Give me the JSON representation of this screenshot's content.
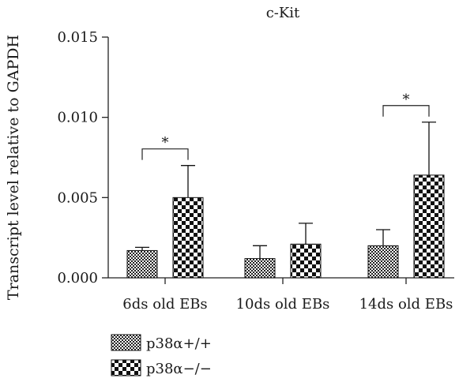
{
  "chart_data": {
    "type": "bar",
    "title": "c-Kit",
    "ylabel": "Transcript level relative to GAPDH",
    "xlabel": "",
    "ylim": [
      0,
      0.015
    ],
    "yticks": [
      "0.000",
      "0.005",
      "0.010",
      "0.015"
    ],
    "categories": [
      "6ds old EBs",
      "10ds old EBs",
      "14ds old EBs"
    ],
    "series": [
      {
        "name": "p38α+/+",
        "pattern": "fine-checker",
        "values": [
          0.0017,
          0.0012,
          0.002
        ],
        "errors": [
          0.0002,
          0.0008,
          0.001
        ]
      },
      {
        "name": "p38α−/−",
        "pattern": "coarse-checker",
        "values": [
          0.005,
          0.0021,
          0.0064
        ],
        "errors": [
          0.002,
          0.0013,
          0.0033
        ]
      }
    ],
    "significance": [
      {
        "category_index": 0,
        "label": "*"
      },
      {
        "category_index": 2,
        "label": "*"
      }
    ],
    "legend_position": "bottom-left",
    "grid": false
  }
}
